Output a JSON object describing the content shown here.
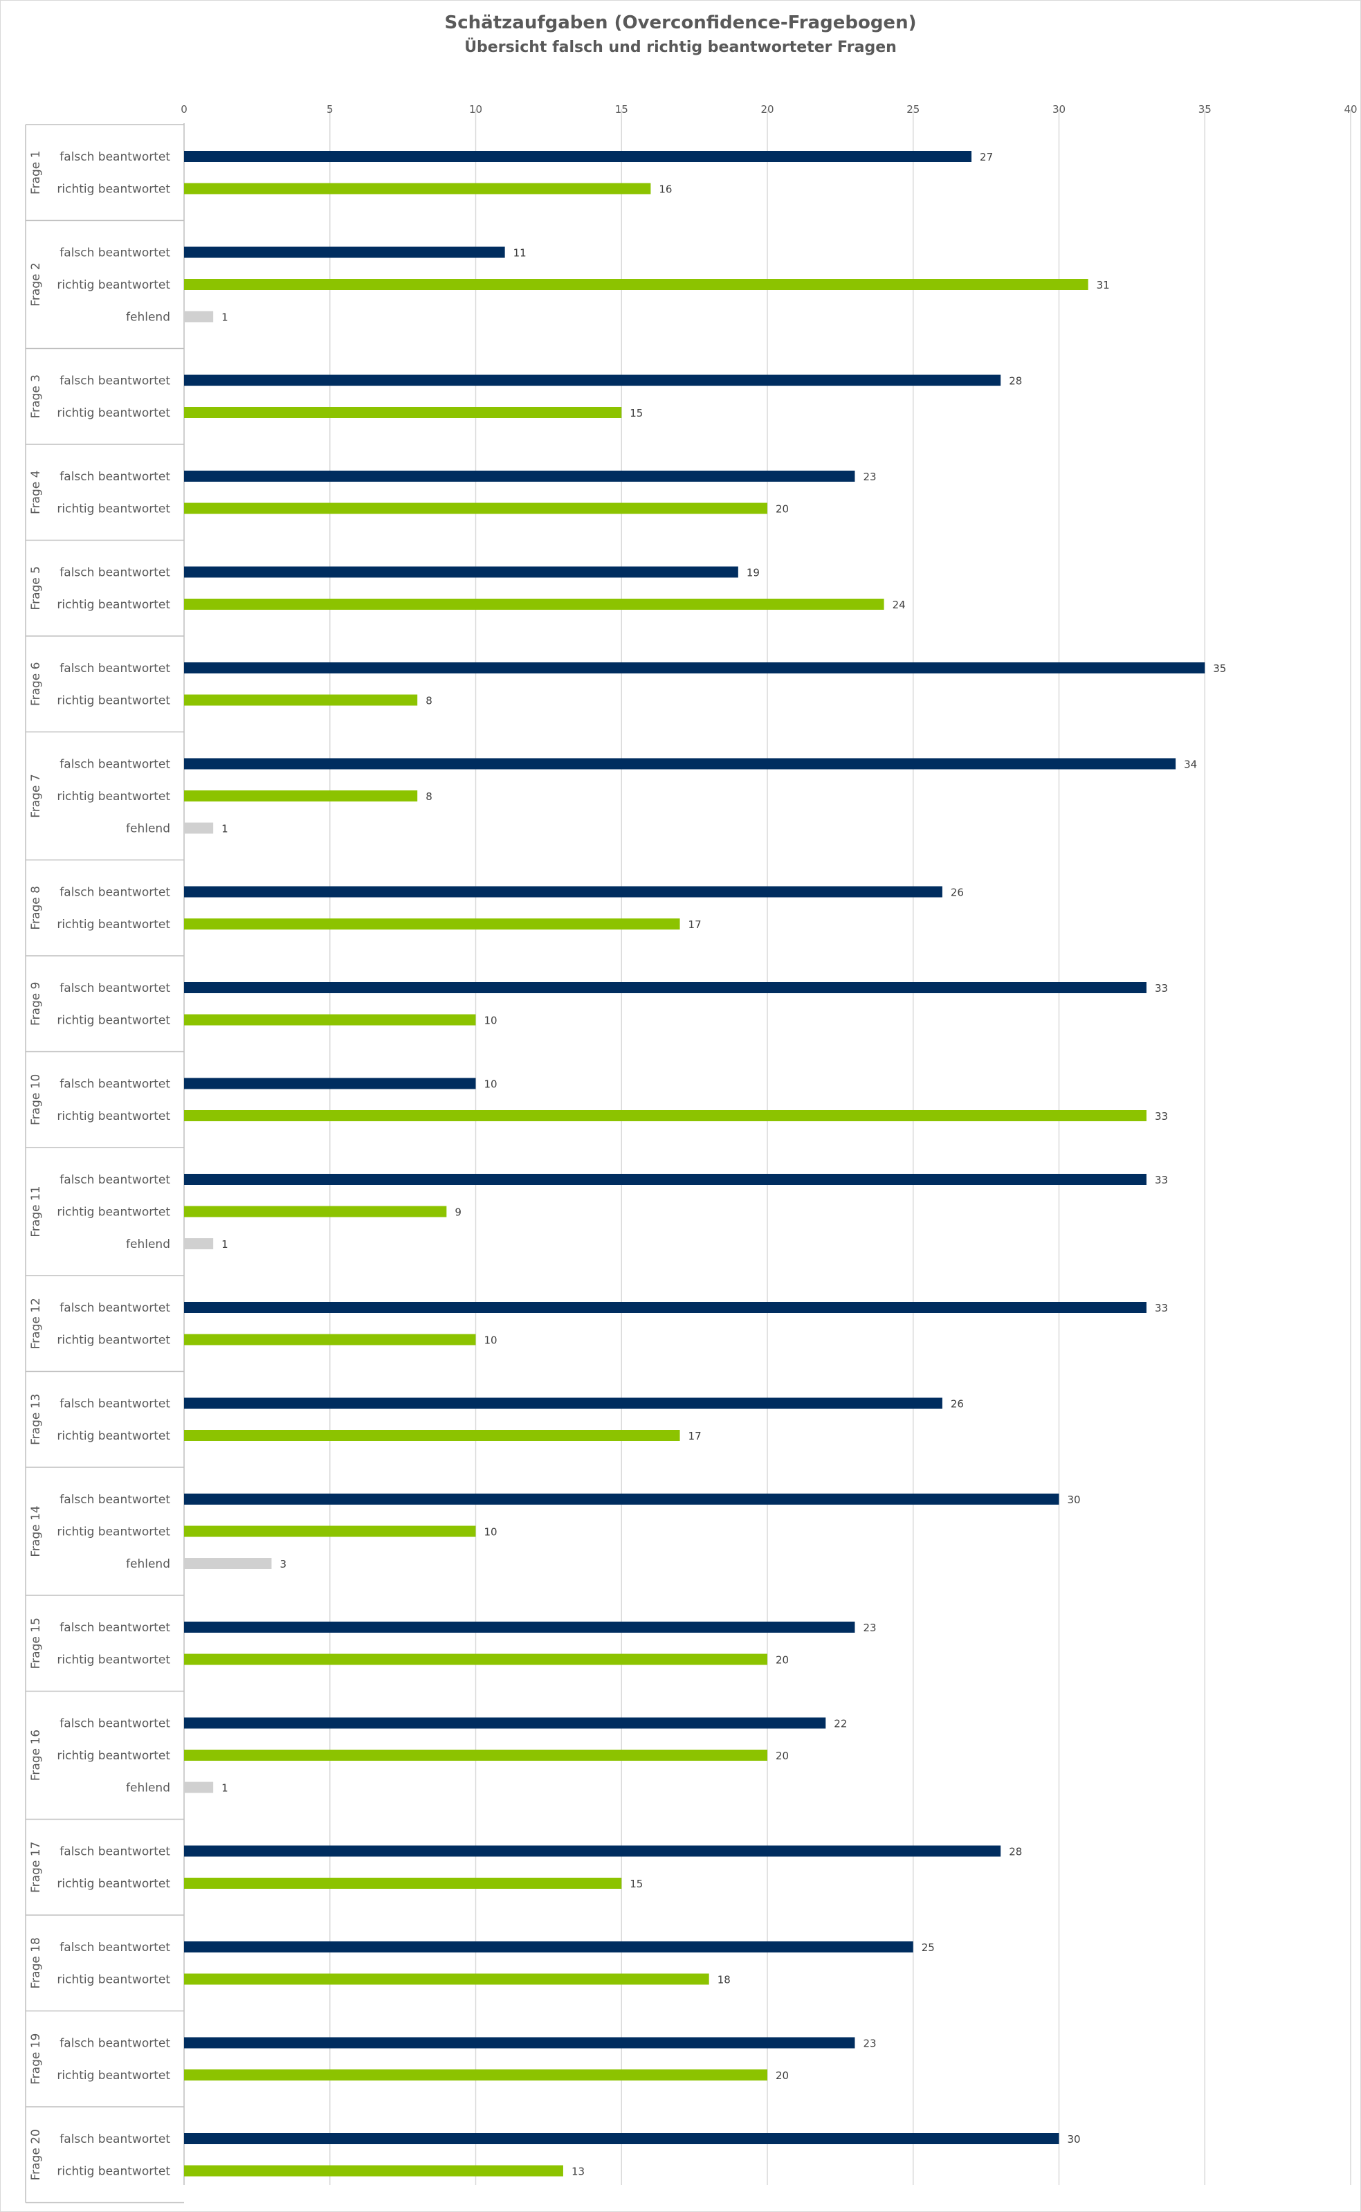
{
  "chart_data": {
    "type": "bar",
    "orientation": "horizontal",
    "title": "Schätzaufgaben (Overconfidence-Fragebogen)",
    "subtitle": "Übersicht falsch und richtig beantworteter Fragen",
    "xlim": [
      0,
      40
    ],
    "xticks": [
      0,
      5,
      10,
      15,
      20,
      25,
      30,
      35,
      40
    ],
    "grid": true,
    "colors": {
      "falsch beantwortet": "#002d5f",
      "richtig beantwortet": "#8cc300",
      "fehlend": "#d0d0d0"
    },
    "groups": [
      {
        "label": "Frage 1",
        "bars": [
          {
            "label": "falsch beantwortet",
            "value": 27
          },
          {
            "label": "richtig beantwortet",
            "value": 16
          }
        ]
      },
      {
        "label": "Frage 2",
        "bars": [
          {
            "label": "falsch beantwortet",
            "value": 11
          },
          {
            "label": "richtig beantwortet",
            "value": 31
          },
          {
            "label": "fehlend",
            "value": 1
          }
        ]
      },
      {
        "label": "Frage 3",
        "bars": [
          {
            "label": "falsch beantwortet",
            "value": 28
          },
          {
            "label": "richtig beantwortet",
            "value": 15
          }
        ]
      },
      {
        "label": "Frage 4",
        "bars": [
          {
            "label": "falsch beantwortet",
            "value": 23
          },
          {
            "label": "richtig beantwortet",
            "value": 20
          }
        ]
      },
      {
        "label": "Frage 5",
        "bars": [
          {
            "label": "falsch beantwortet",
            "value": 19
          },
          {
            "label": "richtig beantwortet",
            "value": 24
          }
        ]
      },
      {
        "label": "Frage 6",
        "bars": [
          {
            "label": "falsch beantwortet",
            "value": 35
          },
          {
            "label": "richtig beantwortet",
            "value": 8
          }
        ]
      },
      {
        "label": "Frage 7",
        "bars": [
          {
            "label": "falsch beantwortet",
            "value": 34
          },
          {
            "label": "richtig beantwortet",
            "value": 8
          },
          {
            "label": "fehlend",
            "value": 1
          }
        ]
      },
      {
        "label": "Frage 8",
        "bars": [
          {
            "label": "falsch beantwortet",
            "value": 26
          },
          {
            "label": "richtig beantwortet",
            "value": 17
          }
        ]
      },
      {
        "label": "Frage 9",
        "bars": [
          {
            "label": "falsch beantwortet",
            "value": 33
          },
          {
            "label": "richtig beantwortet",
            "value": 10
          }
        ]
      },
      {
        "label": "Frage 10",
        "bars": [
          {
            "label": "falsch beantwortet",
            "value": 10
          },
          {
            "label": "richtig beantwortet",
            "value": 33
          }
        ]
      },
      {
        "label": "Frage 11",
        "bars": [
          {
            "label": "falsch beantwortet",
            "value": 33
          },
          {
            "label": "richtig beantwortet",
            "value": 9
          },
          {
            "label": "fehlend",
            "value": 1
          }
        ]
      },
      {
        "label": "Frage 12",
        "bars": [
          {
            "label": "falsch beantwortet",
            "value": 33
          },
          {
            "label": "richtig beantwortet",
            "value": 10
          }
        ]
      },
      {
        "label": "Frage 13",
        "bars": [
          {
            "label": "falsch beantwortet",
            "value": 26
          },
          {
            "label": "richtig beantwortet",
            "value": 17
          }
        ]
      },
      {
        "label": "Frage 14",
        "bars": [
          {
            "label": "falsch beantwortet",
            "value": 30
          },
          {
            "label": "richtig beantwortet",
            "value": 10
          },
          {
            "label": "fehlend",
            "value": 3
          }
        ]
      },
      {
        "label": "Frage 15",
        "bars": [
          {
            "label": "falsch beantwortet",
            "value": 23
          },
          {
            "label": "richtig beantwortet",
            "value": 20
          }
        ]
      },
      {
        "label": "Frage 16",
        "bars": [
          {
            "label": "falsch beantwortet",
            "value": 22
          },
          {
            "label": "richtig beantwortet",
            "value": 20
          },
          {
            "label": "fehlend",
            "value": 1
          }
        ]
      },
      {
        "label": "Frage 17",
        "bars": [
          {
            "label": "falsch beantwortet",
            "value": 28
          },
          {
            "label": "richtig beantwortet",
            "value": 15
          }
        ]
      },
      {
        "label": "Frage 18",
        "bars": [
          {
            "label": "falsch beantwortet",
            "value": 25
          },
          {
            "label": "richtig beantwortet",
            "value": 18
          }
        ]
      },
      {
        "label": "Frage 19",
        "bars": [
          {
            "label": "falsch beantwortet",
            "value": 23
          },
          {
            "label": "richtig beantwortet",
            "value": 20
          }
        ]
      },
      {
        "label": "Frage 20",
        "bars": [
          {
            "label": "falsch beantwortet",
            "value": 30
          },
          {
            "label": "richtig beantwortet",
            "value": 13
          }
        ]
      }
    ]
  }
}
